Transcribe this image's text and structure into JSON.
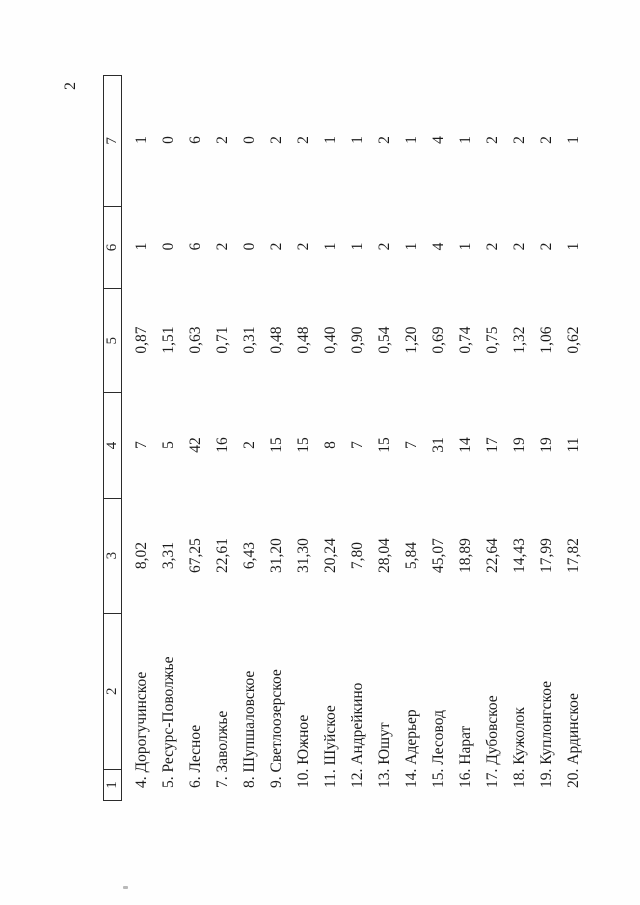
{
  "page": {
    "number": "2"
  },
  "table": {
    "headers": [
      "1",
      "2",
      "3",
      "4",
      "5",
      "6",
      "7"
    ],
    "rows": [
      {
        "num": "4.",
        "name": "Дорогучинское",
        "c3": "8,02",
        "c4": "7",
        "c5": "0,87",
        "c6": "1",
        "c7": "1"
      },
      {
        "num": "5.",
        "name": "Ресурс-Поволжье",
        "c3": "3,31",
        "c4": "5",
        "c5": "1,51",
        "c6": "0",
        "c7": "0"
      },
      {
        "num": "6.",
        "name": "Лесное",
        "c3": "67,25",
        "c4": "42",
        "c5": "0,63",
        "c6": "6",
        "c7": "6"
      },
      {
        "num": "7.",
        "name": "Заволжье",
        "c3": "22,61",
        "c4": "16",
        "c5": "0,71",
        "c6": "2",
        "c7": "2"
      },
      {
        "num": "8.",
        "name": "Шупшаловское",
        "c3": "6,43",
        "c4": "2",
        "c5": "0,31",
        "c6": "0",
        "c7": "0"
      },
      {
        "num": "9.",
        "name": "Светлоозерское",
        "c3": "31,20",
        "c4": "15",
        "c5": "0,48",
        "c6": "2",
        "c7": "2"
      },
      {
        "num": "10.",
        "name": "Южное",
        "c3": "31,30",
        "c4": "15",
        "c5": "0,48",
        "c6": "2",
        "c7": "2"
      },
      {
        "num": "11.",
        "name": "Шуйское",
        "c3": "20,24",
        "c4": "8",
        "c5": "0,40",
        "c6": "1",
        "c7": "1"
      },
      {
        "num": "12.",
        "name": "Андрейкино",
        "c3": "7,80",
        "c4": "7",
        "c5": "0,90",
        "c6": "1",
        "c7": "1"
      },
      {
        "num": "13.",
        "name": "Юшут",
        "c3": "28,04",
        "c4": "15",
        "c5": "0,54",
        "c6": "2",
        "c7": "2"
      },
      {
        "num": "14.",
        "name": "Адерьер",
        "c3": "5,84",
        "c4": "7",
        "c5": "1,20",
        "c6": "1",
        "c7": "1"
      },
      {
        "num": "15.",
        "name": "Лесовод",
        "c3": "45,07",
        "c4": "31",
        "c5": "0,69",
        "c6": "4",
        "c7": "4"
      },
      {
        "num": "16.",
        "name": "Нарат",
        "c3": "18,89",
        "c4": "14",
        "c5": "0,74",
        "c6": "1",
        "c7": "1"
      },
      {
        "num": "17.",
        "name": "Дубовское",
        "c3": "22,64",
        "c4": "17",
        "c5": "0,75",
        "c6": "2",
        "c7": "2"
      },
      {
        "num": "18.",
        "name": "Кужолок",
        "c3": "14,43",
        "c4": "19",
        "c5": "1,32",
        "c6": "2",
        "c7": "2"
      },
      {
        "num": "19.",
        "name": "Куплонгское",
        "c3": "17,99",
        "c4": "19",
        "c5": "1,06",
        "c6": "2",
        "c7": "2"
      },
      {
        "num": "20.",
        "name": "Ардинское",
        "c3": "17,82",
        "c4": "11",
        "c5": "0,62",
        "c6": "1",
        "c7": "1"
      }
    ]
  }
}
